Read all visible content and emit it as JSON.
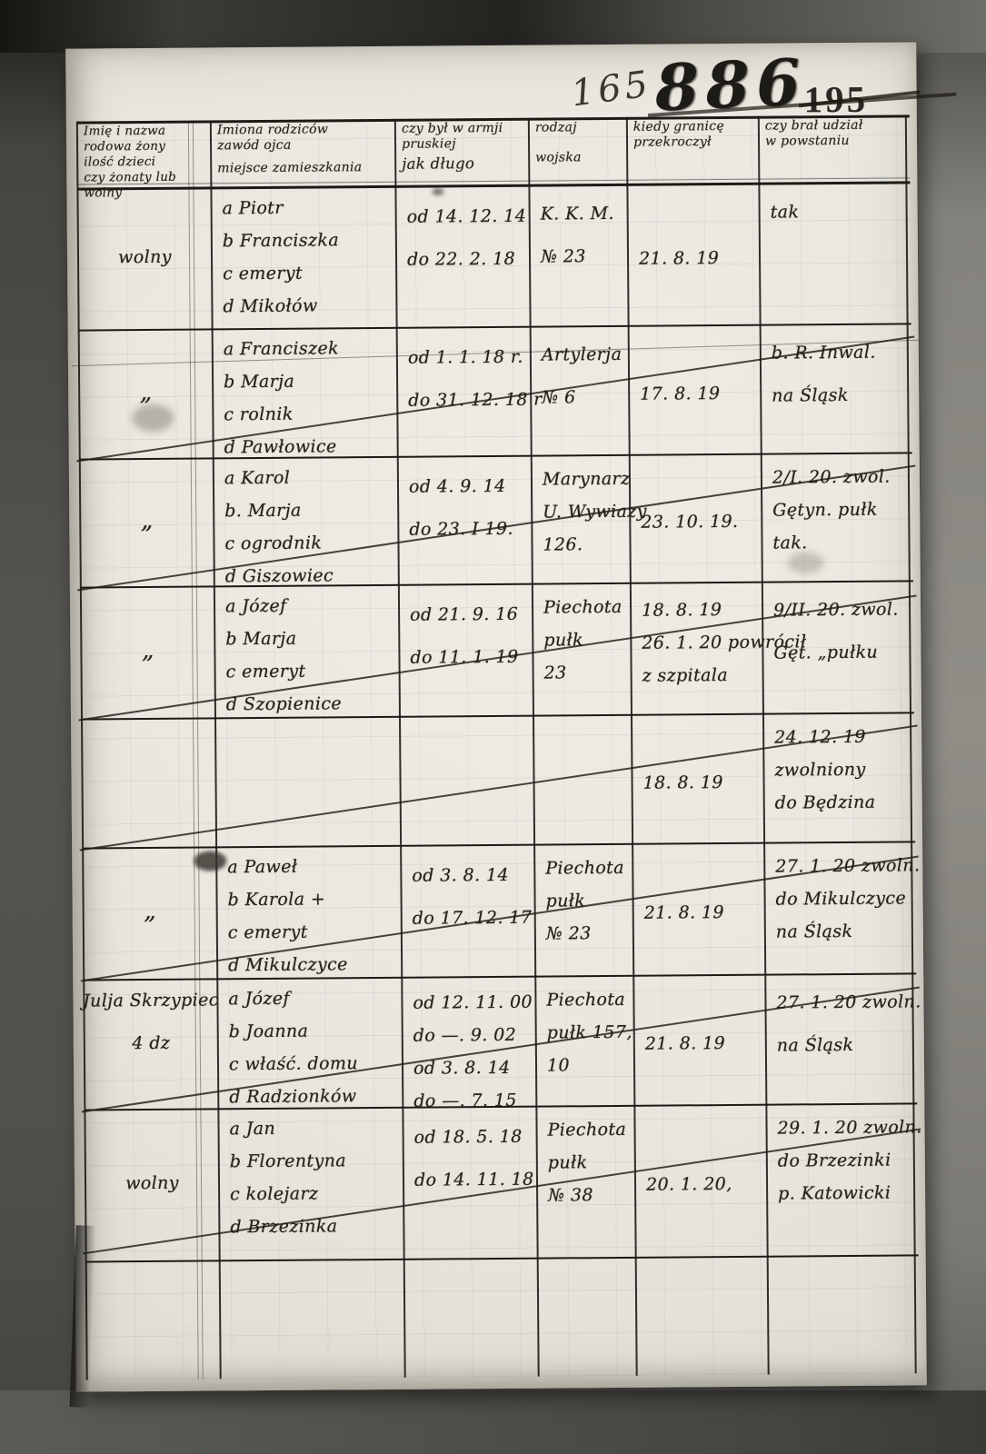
{
  "page": {
    "numbers": {
      "handwritten": "165",
      "bold": "886",
      "printed": "195"
    }
  },
  "table": {
    "header": [
      {
        "lines": [
          "Imię i nazwa",
          "rodowa żony",
          "ilość dzieci",
          "czy żonaty lub wolny"
        ]
      },
      {
        "lines": [
          "Imiona rodziców",
          "zawód ojca",
          "miejsce zamieszkania"
        ]
      },
      {
        "lines": [
          "czy był w armji",
          "pruskiej",
          "jak długo"
        ]
      },
      {
        "lines": [
          "rodzaj",
          "wojska"
        ]
      },
      {
        "lines": [
          "kiedy granicę",
          "przekroczył"
        ]
      },
      {
        "lines": [
          "czy brał udział",
          "w powstaniu"
        ]
      }
    ],
    "rows": [
      {
        "crossed": false,
        "cells": [
          [
            "wolny"
          ],
          [
            "a Piotr",
            "b Franciszka",
            "c emeryt",
            "d Mikołów"
          ],
          [
            "od 14. 12. 14",
            "do 22. 2. 18"
          ],
          [
            "K. K. M.",
            "№ 23"
          ],
          [
            "21. 8. 19"
          ],
          [
            "tak"
          ]
        ]
      },
      {
        "crossed": true,
        "cells": [
          [
            "„"
          ],
          [
            "a Franciszek",
            "b Marja",
            "c rolnik",
            "d Pawłowice"
          ],
          [
            "od 1. 1. 18 r.",
            "do 31. 12. 18 r"
          ],
          [
            "Artylerja",
            "№ 6"
          ],
          [
            "17. 8. 19"
          ],
          [
            "b. R. Inwal.",
            "na Śląsk"
          ]
        ]
      },
      {
        "crossed": true,
        "cells": [
          [
            "„"
          ],
          [
            "a Karol",
            "b. Marja",
            "c ogrodnik",
            "d Giszowiec"
          ],
          [
            "od 4. 9. 14",
            "do 23. I 19."
          ],
          [
            "Marynarz",
            "U. Wywiazy",
            "126."
          ],
          [
            "23. 10. 19."
          ],
          [
            "2/I. 20. zwol.",
            "Gętyn. pułk",
            "tak."
          ]
        ]
      },
      {
        "crossed": true,
        "cells": [
          [
            "„"
          ],
          [
            "a Józef",
            "b Marja",
            "c emeryt",
            "d Szopienice"
          ],
          [
            "od 21. 9. 16",
            "do 11. 1. 19"
          ],
          [
            "Piechota",
            "pułk",
            "23"
          ],
          [
            "18. 8. 19",
            "26. 1. 20 powrócił",
            "z szpitala"
          ],
          [
            "9/II. 20. zwol.",
            "Gęt. „pułku"
          ]
        ]
      },
      {
        "crossed": true,
        "cells": [
          [],
          [],
          [],
          [],
          [
            "18. 8. 19"
          ],
          [
            "24. 12. 19",
            "zwolniony",
            "do Będzina"
          ]
        ]
      },
      {
        "crossed": true,
        "cells": [
          [
            "„"
          ],
          [
            "a Paweł",
            "b Karola +",
            "c emeryt",
            "d Mikulczyce"
          ],
          [
            "od 3. 8. 14",
            "do 17. 12. 17"
          ],
          [
            "Piechota",
            "pułk",
            "№ 23"
          ],
          [
            "21. 8. 19"
          ],
          [
            "27. 1. 20 zwoln.",
            "do Mikulczyce",
            "na Śląsk"
          ]
        ]
      },
      {
        "crossed": true,
        "cells": [
          [
            "Julja Skrzypiec",
            "4 dz"
          ],
          [
            "a Józef",
            "b Joanna",
            "c właść. domu",
            "d Radzionków"
          ],
          [
            "od 12. 11. 00",
            "do —. 9. 02",
            "od 3. 8. 14",
            "do —. 7. 15"
          ],
          [
            "Piechota",
            "pułk 157,",
            "10"
          ],
          [
            "21. 8. 19"
          ],
          [
            "27. 1. 20 zwoln.",
            "na Śląsk"
          ]
        ]
      },
      {
        "crossed": true,
        "cells": [
          [
            "wolny"
          ],
          [
            "a Jan",
            "b Florentyna",
            "c kolejarz",
            "d Brzezinka"
          ],
          [
            "od 18. 5. 18",
            "do 14. 11. 18"
          ],
          [
            "Piechota",
            "pułk",
            "№ 38"
          ],
          [
            "20. 1. 20,"
          ],
          [
            "29. 1. 20 zwoln.",
            "do Brzezinki",
            "p. Katowicki"
          ]
        ]
      }
    ]
  }
}
